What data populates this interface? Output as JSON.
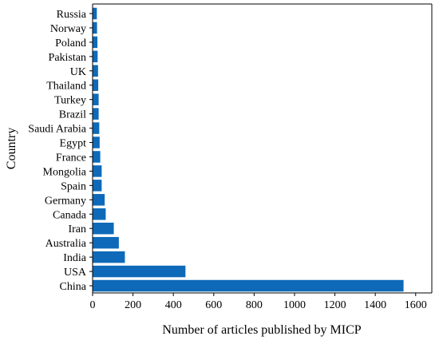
{
  "chart_data": {
    "type": "bar",
    "orientation": "horizontal",
    "categories": [
      "China",
      "USA",
      "India",
      "Australia",
      "Iran",
      "Canada",
      "Germany",
      "Spain",
      "Mongolia",
      "France",
      "Egypt",
      "Saudi Arabia",
      "Brazil",
      "Turkey",
      "Thailand",
      "UK",
      "Pakistan",
      "Poland",
      "Norway",
      "Russia"
    ],
    "values": [
      1540,
      460,
      160,
      130,
      105,
      65,
      60,
      45,
      45,
      38,
      35,
      33,
      30,
      30,
      28,
      27,
      25,
      24,
      22,
      21
    ],
    "xlabel": "Number of articles published by MICP",
    "ylabel": "Country",
    "xlim": [
      0,
      1680
    ],
    "xticks": [
      0,
      200,
      400,
      600,
      800,
      1000,
      1200,
      1400,
      1600
    ],
    "grid": false,
    "bar_color": "#0e6ab8"
  }
}
